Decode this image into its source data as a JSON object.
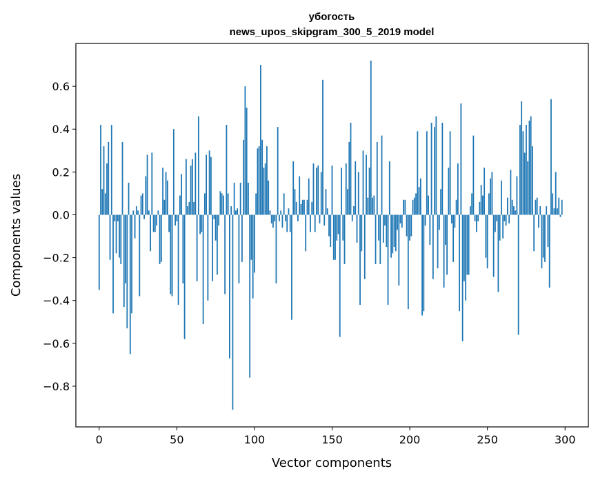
{
  "chart_data": {
    "type": "bar",
    "title_line1": "убогость",
    "title_line2": "news_upos_skipgram_300_5_2019 model",
    "xlabel": "Vector components",
    "ylabel": "Components values",
    "xlim": [
      -15,
      315
    ],
    "ylim": [
      -0.99,
      0.8
    ],
    "xticks": [
      0,
      50,
      100,
      150,
      200,
      250,
      300
    ],
    "xtick_labels": [
      "0",
      "50",
      "100",
      "150",
      "200",
      "250",
      "300"
    ],
    "yticks": [
      -0.8,
      -0.6,
      -0.4,
      -0.2,
      0.0,
      0.2,
      0.4,
      0.6
    ],
    "ytick_labels": [
      "−0.8",
      "−0.6",
      "−0.4",
      "−0.2",
      "0.0",
      "0.2",
      "0.4",
      "0.6"
    ],
    "bar_color": "#1f77b4",
    "grid": false,
    "x_start": 0,
    "values": [
      -0.35,
      0.42,
      0.12,
      0.32,
      0.1,
      0.24,
      0.34,
      -0.21,
      0.42,
      -0.46,
      -0.03,
      -0.18,
      -0.03,
      -0.2,
      -0.23,
      0.34,
      -0.43,
      -0.32,
      -0.53,
      0.15,
      -0.65,
      -0.46,
      0.02,
      -0.11,
      0.04,
      0.02,
      -0.38,
      0.09,
      0.1,
      -0.02,
      0.18,
      0.28,
      0.02,
      -0.17,
      0.29,
      -0.08,
      -0.08,
      -0.05,
      0.02,
      -0.23,
      -0.22,
      0.22,
      0.07,
      0.2,
      0.16,
      -0.08,
      -0.37,
      -0.38,
      0.4,
      -0.05,
      -0.03,
      -0.42,
      0.09,
      0.19,
      -0.32,
      -0.58,
      0.26,
      0.04,
      0.06,
      0.23,
      0.26,
      0.06,
      0.29,
      -0.31,
      0.46,
      -0.09,
      -0.08,
      -0.51,
      0.1,
      0.28,
      -0.4,
      0.3,
      0.27,
      -0.31,
      -0.02,
      -0.12,
      -0.28,
      -0.05,
      0.11,
      0.1,
      0.09,
      -0.37,
      0.42,
      0.1,
      -0.67,
      0.04,
      -0.91,
      0.15,
      0.02,
      0.03,
      -0.32,
      0.15,
      -0.22,
      0.35,
      0.6,
      0.5,
      0.15,
      -0.76,
      -0.21,
      -0.39,
      -0.27,
      0.1,
      0.31,
      0.32,
      0.7,
      0.35,
      0.22,
      0.24,
      0.32,
      0.16,
      0.02,
      -0.04,
      -0.06,
      -0.03,
      -0.32,
      0.41,
      -0.03,
      0.02,
      -0.06,
      0.1,
      -0.03,
      -0.08,
      0.03,
      -0.08,
      -0.49,
      0.25,
      0.12,
      0.06,
      -0.03,
      0.18,
      0.05,
      0.07,
      0.07,
      -0.17,
      0.07,
      0.17,
      -0.08,
      0.06,
      0.24,
      -0.08,
      0.22,
      0.23,
      -0.04,
      0.2,
      0.63,
      -0.05,
      0.12,
      0.03,
      -0.1,
      -0.15,
      0.23,
      -0.21,
      -0.21,
      -0.12,
      -0.09,
      -0.57,
      0.22,
      -0.12,
      -0.23,
      0.24,
      0.12,
      0.34,
      0.43,
      -0.03,
      0.04,
      0.25,
      -0.13,
      0.2,
      -0.42,
      -0.17,
      0.3,
      -0.3,
      0.28,
      0.08,
      0.22,
      0.72,
      0.08,
      0.09,
      -0.23,
      0.34,
      -0.12,
      -0.23,
      0.37,
      -0.13,
      -0.05,
      -0.15,
      -0.42,
      0.25,
      -0.2,
      -0.18,
      -0.15,
      -0.17,
      -0.07,
      -0.33,
      -0.04,
      -0.06,
      0.07,
      0.07,
      -0.1,
      -0.44,
      -0.12,
      -0.1,
      0.07,
      0.08,
      0.1,
      0.39,
      0.13,
      0.17,
      -0.47,
      -0.45,
      -0.05,
      0.39,
      0.09,
      -0.14,
      0.43,
      -0.3,
      0.41,
      0.46,
      -0.25,
      -0.07,
      0.12,
      0.43,
      -0.34,
      -0.14,
      -0.28,
      0.22,
      0.39,
      -0.04,
      -0.22,
      -0.06,
      0.07,
      0.24,
      -0.45,
      0.52,
      -0.59,
      -0.31,
      -0.4,
      -0.28,
      -0.28,
      0.04,
      0.1,
      0.37,
      -0.03,
      -0.08,
      -0.03,
      0.06,
      0.14,
      0.09,
      0.22,
      -0.2,
      -0.25,
      0.1,
      0.17,
      0.2,
      -0.29,
      -0.08,
      -0.03,
      -0.36,
      -0.12,
      0.16,
      -0.11,
      -0.03,
      -0.05,
      0.08,
      -0.04,
      0.21,
      0.07,
      0.04,
      0.02,
      0.18,
      -0.56,
      0.42,
      0.53,
      0.39,
      0.29,
      0.42,
      0.25,
      0.44,
      0.46,
      0.32,
      -0.17,
      0.07,
      0.08,
      -0.06,
      0.04,
      -0.25,
      -0.2,
      -0.22,
      0.04,
      -0.15,
      -0.34,
      0.54,
      0.1,
      0.03,
      0.2,
      0.03,
      0.08,
      -0.01,
      0.07
    ]
  }
}
